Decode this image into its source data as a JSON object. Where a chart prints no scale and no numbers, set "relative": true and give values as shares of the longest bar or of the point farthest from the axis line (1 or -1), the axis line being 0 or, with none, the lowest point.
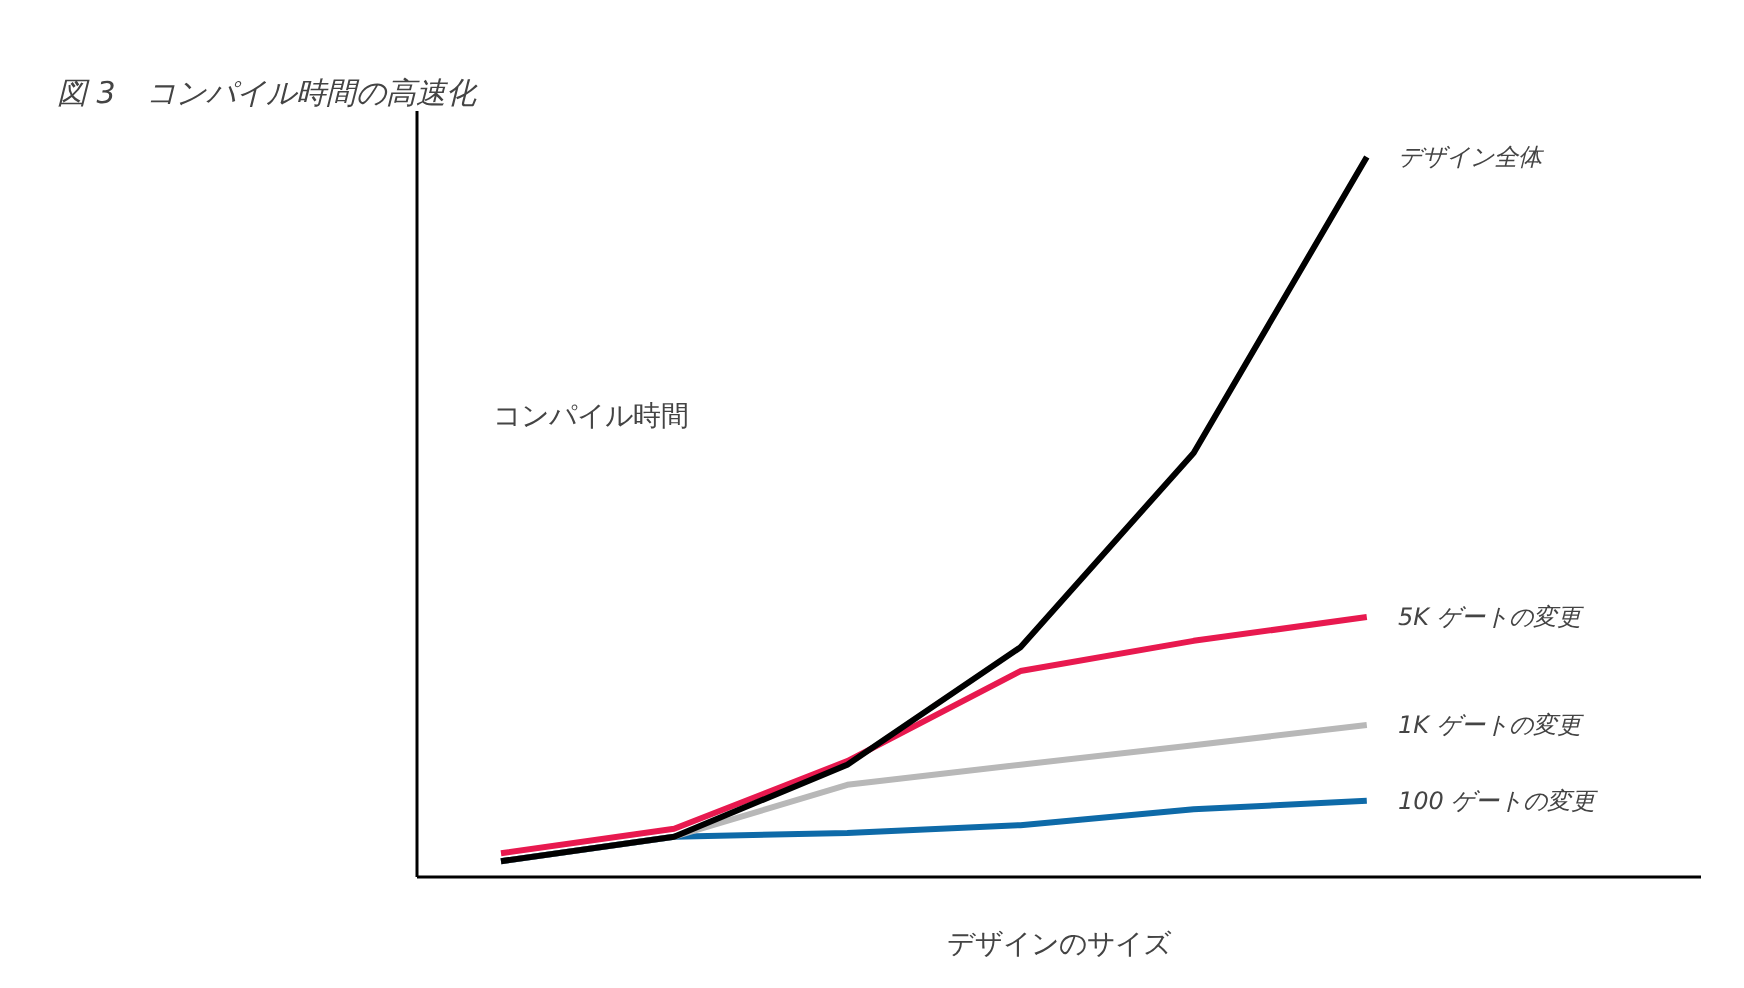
{
  "chart_data": {
    "type": "line",
    "title": "図 3　コンパイル時間の高速化",
    "xlabel": "デザインのサイズ",
    "ylabel": "コンパイル時間",
    "relative": true,
    "grid": false,
    "marker": "none",
    "line_style": "solid",
    "categories": [
      null,
      null,
      null,
      null,
      null,
      null
    ],
    "series": [
      {
        "name": "デザイン全体",
        "color": "#000000",
        "values": [
          0.022,
          0.056,
          0.156,
          0.319,
          0.589,
          1.0
        ]
      },
      {
        "name": "5K ゲートの変更",
        "color": "#e8194f",
        "values": [
          0.033,
          0.067,
          0.161,
          0.286,
          0.328,
          0.361
        ]
      },
      {
        "name": "1K ゲートの変更",
        "color": "#b8b8b8",
        "values": [
          0.022,
          0.056,
          0.128,
          0.156,
          0.183,
          0.211
        ]
      },
      {
        "name": "100 ゲートの変更",
        "color": "#0e6aa8",
        "values": [
          0.022,
          0.056,
          0.061,
          0.072,
          0.094,
          0.106
        ]
      }
    ]
  }
}
